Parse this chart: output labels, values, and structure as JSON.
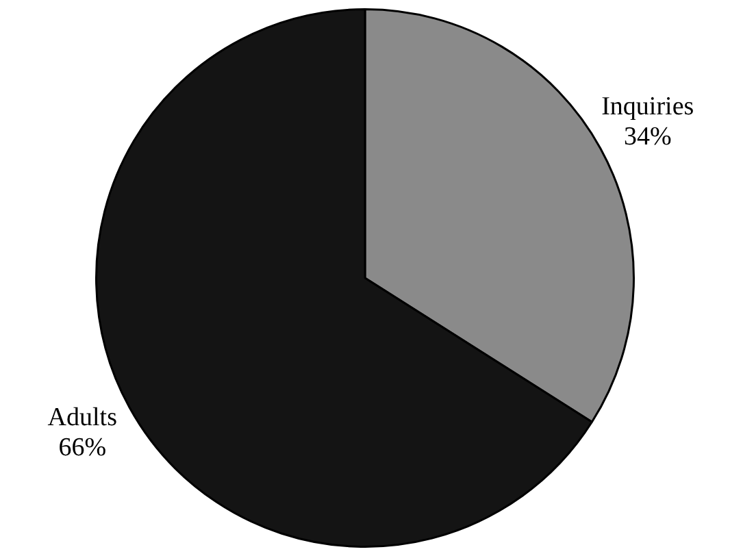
{
  "chart_data": {
    "type": "pie",
    "categories": [
      "Inquiries",
      "Adults"
    ],
    "values": [
      34,
      66
    ],
    "colors": [
      "#8a8a8a",
      "#141414"
    ],
    "value_labels": [
      "34%",
      "66%"
    ],
    "legend": false
  }
}
